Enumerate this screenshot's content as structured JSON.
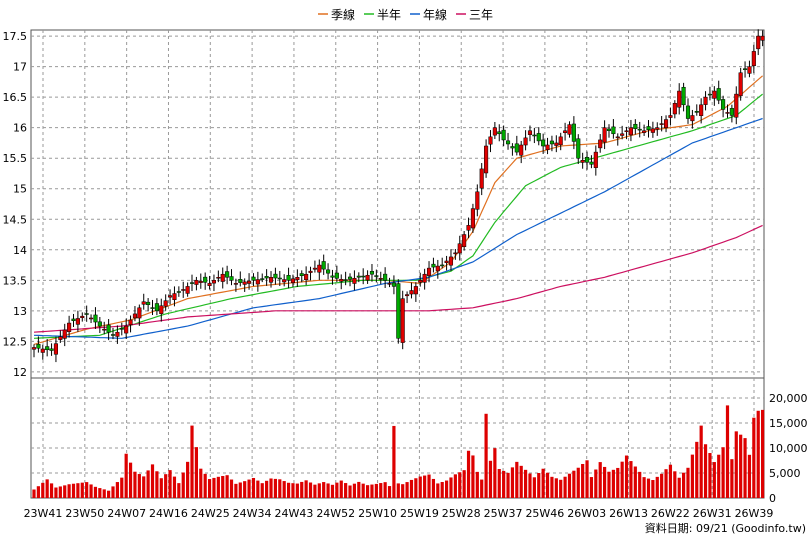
{
  "legend": {
    "items": [
      {
        "label": "季線",
        "color": "#e07020"
      },
      {
        "label": "半年",
        "color": "#22bb22"
      },
      {
        "label": "年線",
        "color": "#1060cc"
      },
      {
        "label": "三年",
        "color": "#cc1060"
      }
    ]
  },
  "footer": {
    "source": "資料日期: 09/21 (Goodinfo.tw)"
  },
  "chart_data": {
    "type": "candlestick-with-volume",
    "x_tick_labels": [
      "23W41",
      "23W50",
      "24W07",
      "24W16",
      "24W25",
      "24W34",
      "24W43",
      "24W52",
      "25W10",
      "25W19",
      "25W28",
      "25W37",
      "25W46",
      "26W03",
      "26W13",
      "26W22",
      "26W31",
      "26W39"
    ],
    "price_axis": {
      "ticks": [
        12,
        12.5,
        13,
        13.5,
        14,
        14.5,
        15,
        15.5,
        16,
        16.5,
        17,
        17.5
      ],
      "ylim": [
        11.9,
        17.6
      ]
    },
    "volume_axis": {
      "ticks": [
        0,
        5000,
        10000,
        15000,
        20000
      ],
      "tick_labels": [
        "0",
        "5,000",
        "10,000",
        "15,000",
        "20,000"
      ],
      "ylim": [
        0,
        24000
      ]
    },
    "colors": {
      "up": "#e00000",
      "down": "#00aa00",
      "volume": "#dd0000"
    },
    "close_anchors": [
      [
        0,
        12.4
      ],
      [
        4,
        12.35
      ],
      [
        8,
        12.8
      ],
      [
        12,
        12.95
      ],
      [
        15,
        12.75
      ],
      [
        18,
        12.6
      ],
      [
        21,
        12.75
      ],
      [
        25,
        13.15
      ],
      [
        28,
        13.0
      ],
      [
        31,
        13.25
      ],
      [
        34,
        13.35
      ],
      [
        37,
        13.5
      ],
      [
        40,
        13.45
      ],
      [
        43,
        13.6
      ],
      [
        46,
        13.45
      ],
      [
        50,
        13.5
      ],
      [
        54,
        13.55
      ],
      [
        58,
        13.5
      ],
      [
        62,
        13.6
      ],
      [
        65,
        13.75
      ],
      [
        68,
        13.55
      ],
      [
        71,
        13.5
      ],
      [
        74,
        13.55
      ],
      [
        77,
        13.6
      ],
      [
        80,
        13.5
      ],
      [
        82,
        13.4
      ],
      [
        83,
        12.55
      ],
      [
        84,
        13.2
      ],
      [
        87,
        13.4
      ],
      [
        90,
        13.7
      ],
      [
        93,
        13.75
      ],
      [
        96,
        13.95
      ],
      [
        99,
        14.4
      ],
      [
        101,
        14.95
      ],
      [
        103,
        15.7
      ],
      [
        105,
        16.0
      ],
      [
        107,
        15.8
      ],
      [
        110,
        15.6
      ],
      [
        113,
        15.95
      ],
      [
        116,
        15.7
      ],
      [
        119,
        15.75
      ],
      [
        122,
        16.05
      ],
      [
        124,
        15.5
      ],
      [
        127,
        15.4
      ],
      [
        130,
        16.0
      ],
      [
        133,
        15.85
      ],
      [
        136,
        16.0
      ],
      [
        139,
        15.95
      ],
      [
        142,
        16.0
      ],
      [
        145,
        16.2
      ],
      [
        147,
        16.6
      ],
      [
        149,
        16.15
      ],
      [
        151,
        16.25
      ],
      [
        153,
        16.5
      ],
      [
        155,
        16.6
      ],
      [
        157,
        16.3
      ],
      [
        159,
        16.2
      ],
      [
        161,
        16.9
      ],
      [
        163,
        17.0
      ],
      [
        165,
        17.5
      ]
    ],
    "volume_anchors": [
      [
        0,
        2000
      ],
      [
        3,
        4200
      ],
      [
        5,
        2300
      ],
      [
        8,
        2900
      ],
      [
        12,
        3200
      ],
      [
        14,
        2200
      ],
      [
        17,
        1400
      ],
      [
        20,
        3800
      ],
      [
        21,
        8200
      ],
      [
        23,
        4800
      ],
      [
        25,
        3900
      ],
      [
        27,
        6000
      ],
      [
        29,
        3500
      ],
      [
        31,
        4900
      ],
      [
        33,
        2600
      ],
      [
        35,
        6300
      ],
      [
        36,
        12600
      ],
      [
        38,
        5100
      ],
      [
        40,
        3300
      ],
      [
        42,
        3700
      ],
      [
        44,
        4000
      ],
      [
        46,
        2500
      ],
      [
        48,
        3000
      ],
      [
        50,
        3600
      ],
      [
        52,
        2700
      ],
      [
        54,
        3600
      ],
      [
        56,
        3500
      ],
      [
        58,
        2900
      ],
      [
        60,
        2800
      ],
      [
        62,
        3500
      ],
      [
        64,
        2700
      ],
      [
        66,
        3300
      ],
      [
        68,
        2800
      ],
      [
        70,
        3800
      ],
      [
        72,
        2800
      ],
      [
        74,
        3700
      ],
      [
        76,
        3000
      ],
      [
        78,
        3200
      ],
      [
        80,
        3500
      ],
      [
        81,
        2600
      ],
      [
        82,
        15500
      ],
      [
        83,
        3100
      ],
      [
        84,
        2900
      ],
      [
        86,
        3700
      ],
      [
        88,
        4300
      ],
      [
        90,
        4600
      ],
      [
        92,
        2800
      ],
      [
        94,
        3300
      ],
      [
        96,
        4400
      ],
      [
        98,
        5100
      ],
      [
        99,
        8600
      ],
      [
        100,
        7700
      ],
      [
        101,
        4700
      ],
      [
        102,
        3300
      ],
      [
        103,
        15000
      ],
      [
        104,
        6600
      ],
      [
        105,
        8800
      ],
      [
        106,
        5100
      ],
      [
        108,
        4400
      ],
      [
        110,
        6300
      ],
      [
        112,
        4900
      ],
      [
        114,
        3600
      ],
      [
        116,
        5100
      ],
      [
        118,
        3700
      ],
      [
        120,
        3200
      ],
      [
        122,
        4300
      ],
      [
        124,
        5400
      ],
      [
        126,
        6800
      ],
      [
        127,
        3800
      ],
      [
        129,
        6600
      ],
      [
        131,
        4900
      ],
      [
        133,
        5700
      ],
      [
        135,
        8200
      ],
      [
        137,
        6200
      ],
      [
        139,
        4200
      ],
      [
        141,
        3700
      ],
      [
        143,
        5100
      ],
      [
        145,
        7200
      ],
      [
        147,
        4500
      ],
      [
        149,
        6900
      ],
      [
        151,
        13200
      ],
      [
        152,
        16800
      ],
      [
        153,
        12300
      ],
      [
        155,
        8000
      ],
      [
        157,
        11000
      ],
      [
        158,
        19800
      ],
      [
        159,
        8200
      ],
      [
        160,
        13900
      ],
      [
        162,
        12200
      ],
      [
        163,
        8700
      ],
      [
        164,
        16000
      ],
      [
        165,
        17200
      ]
    ],
    "moving_averages": [
      {
        "name": "季線",
        "color": "#e07020",
        "values": [
          [
            0,
            12.45
          ],
          [
            12,
            12.7
          ],
          [
            22,
            12.85
          ],
          [
            35,
            13.2
          ],
          [
            50,
            13.4
          ],
          [
            65,
            13.5
          ],
          [
            80,
            13.5
          ],
          [
            88,
            13.45
          ],
          [
            95,
            13.8
          ],
          [
            100,
            14.3
          ],
          [
            105,
            15.1
          ],
          [
            110,
            15.5
          ],
          [
            120,
            15.7
          ],
          [
            130,
            15.75
          ],
          [
            140,
            15.95
          ],
          [
            150,
            16.05
          ],
          [
            158,
            16.35
          ],
          [
            166,
            16.85
          ]
        ]
      },
      {
        "name": "半年",
        "color": "#22bb22",
        "values": [
          [
            0,
            12.55
          ],
          [
            15,
            12.6
          ],
          [
            30,
            12.95
          ],
          [
            45,
            13.2
          ],
          [
            60,
            13.4
          ],
          [
            75,
            13.5
          ],
          [
            87,
            13.5
          ],
          [
            95,
            13.65
          ],
          [
            100,
            13.9
          ],
          [
            105,
            14.45
          ],
          [
            112,
            15.05
          ],
          [
            120,
            15.35
          ],
          [
            130,
            15.55
          ],
          [
            140,
            15.75
          ],
          [
            150,
            15.95
          ],
          [
            160,
            16.2
          ],
          [
            166,
            16.55
          ]
        ]
      },
      {
        "name": "年線",
        "color": "#1060cc",
        "values": [
          [
            0,
            12.6
          ],
          [
            20,
            12.55
          ],
          [
            35,
            12.75
          ],
          [
            50,
            13.05
          ],
          [
            65,
            13.2
          ],
          [
            80,
            13.45
          ],
          [
            90,
            13.55
          ],
          [
            100,
            13.8
          ],
          [
            110,
            14.25
          ],
          [
            120,
            14.6
          ],
          [
            130,
            14.95
          ],
          [
            140,
            15.35
          ],
          [
            150,
            15.75
          ],
          [
            160,
            16.0
          ],
          [
            166,
            16.15
          ]
        ]
      },
      {
        "name": "三年",
        "color": "#cc1060",
        "values": [
          [
            0,
            12.65
          ],
          [
            20,
            12.75
          ],
          [
            35,
            12.9
          ],
          [
            55,
            13.0
          ],
          [
            75,
            13.0
          ],
          [
            90,
            13.0
          ],
          [
            100,
            13.05
          ],
          [
            110,
            13.2
          ],
          [
            120,
            13.4
          ],
          [
            130,
            13.55
          ],
          [
            140,
            13.75
          ],
          [
            150,
            13.95
          ],
          [
            160,
            14.2
          ],
          [
            166,
            14.4
          ]
        ]
      }
    ]
  }
}
